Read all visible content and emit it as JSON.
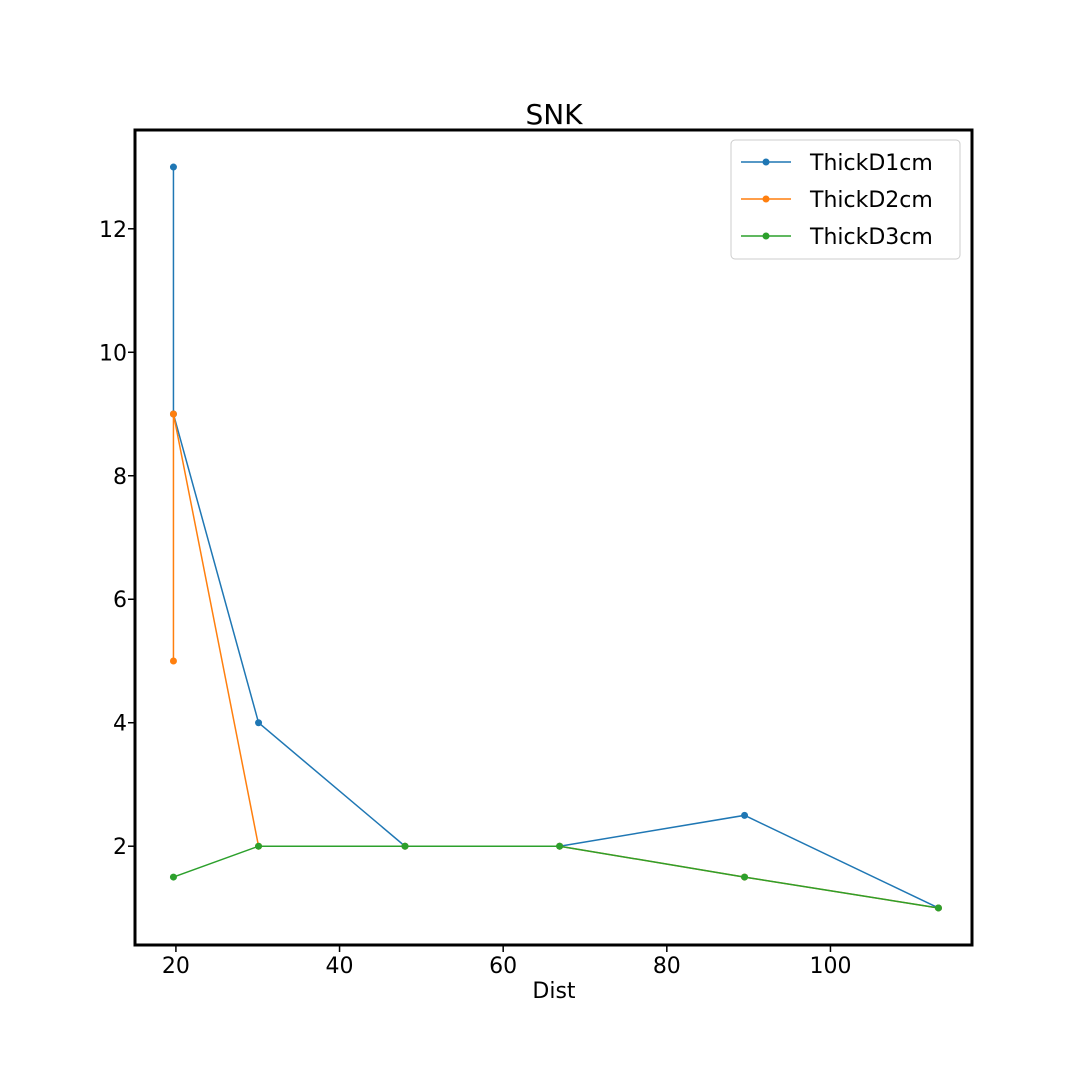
{
  "chart_data": {
    "type": "line",
    "title": "SNK",
    "xlabel": "Dist",
    "ylabel": "",
    "xlim": [
      15.0,
      117.3
    ],
    "ylim": [
      0.4,
      13.6
    ],
    "xticks": [
      20,
      40,
      60,
      80,
      100
    ],
    "yticks": [
      2,
      4,
      6,
      8,
      10,
      12
    ],
    "grid": false,
    "legend_position": "top-right",
    "series": [
      {
        "name": "ThickD1cm",
        "color": "#1f77b4",
        "points": [
          [
            19.7,
            13
          ],
          [
            19.7,
            9
          ],
          [
            30.1,
            4
          ],
          [
            48.0,
            2
          ],
          [
            66.9,
            2
          ],
          [
            89.5,
            2.5
          ],
          [
            113.2,
            1
          ]
        ]
      },
      {
        "name": "ThickD2cm",
        "color": "#ff7f0e",
        "points": [
          [
            19.7,
            5
          ],
          [
            19.7,
            9
          ],
          [
            30.1,
            2
          ],
          [
            48.0,
            2
          ],
          [
            66.9,
            2
          ],
          [
            89.5,
            1.5
          ],
          [
            113.2,
            1
          ]
        ]
      },
      {
        "name": "ThickD3cm",
        "color": "#2ca02c",
        "points": [
          [
            19.7,
            1.5
          ],
          [
            30.1,
            2
          ],
          [
            48.0,
            2
          ],
          [
            66.9,
            2
          ],
          [
            89.5,
            1.5
          ],
          [
            113.2,
            1
          ]
        ]
      }
    ]
  }
}
